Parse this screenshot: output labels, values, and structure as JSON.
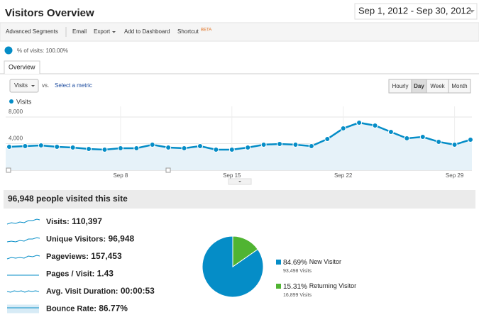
{
  "header": {
    "title": "Visitors Overview",
    "date_range": "Sep 1, 2012 - Sep 30, 2012"
  },
  "toolbar": {
    "items": [
      "Advanced Segments",
      "Email",
      "Export",
      "Add to Dashboard",
      "Shortcut"
    ],
    "badge": "BETA"
  },
  "segment": "% of visits: 100.00%",
  "tab": "Overview",
  "controls": {
    "metric": "Visits",
    "vs": "vs.",
    "select": "Select a metric",
    "granularity": [
      "Hourly",
      "Day",
      "Week",
      "Month"
    ]
  },
  "chart_data": [
    {
      "type": "line",
      "categories": [
        null,
        null,
        null,
        null,
        null,
        null,
        null,
        "Sep 8",
        null,
        null,
        null,
        null,
        null,
        null,
        "Sep 15",
        null,
        null,
        null,
        null,
        null,
        null,
        "Sep 22",
        null,
        null,
        null,
        null,
        null,
        null,
        "Sep 29",
        null
      ],
      "series": [
        {
          "name": "Visits",
          "color": "#058dc7",
          "values": [
            3520,
            3630,
            3730,
            3520,
            3410,
            3200,
            3090,
            3310,
            3310,
            3840,
            3410,
            3310,
            3630,
            3090,
            3090,
            3410,
            3840,
            3950,
            3840,
            3630,
            4690,
            6290,
            7150,
            6720,
            5760,
            4800,
            5010,
            4270,
            3840,
            4590
          ]
        }
      ],
      "ylim": [
        0,
        8000
      ],
      "yticks": [
        {
          "value": 4000,
          "label": "4,000"
        },
        {
          "value": 8000,
          "label": "8,000"
        }
      ],
      "grid": true
    },
    {
      "type": "pie",
      "categories": [
        "New Visitor",
        "Returning Visitor"
      ],
      "values": [
        84.69,
        15.31
      ],
      "value_labels": [
        "84.69%",
        "15.31%"
      ],
      "colors": [
        "#058dc7",
        "#50b432"
      ],
      "counts": [
        "93,498 Visits",
        "16,899 Visits"
      ]
    }
  ],
  "summary": {
    "headline": "96,948 people visited this site",
    "metrics": [
      {
        "label": "Visits:",
        "value": "110,397"
      },
      {
        "label": "Unique Visitors:",
        "value": "96,948"
      },
      {
        "label": "Pageviews:",
        "value": "157,453"
      },
      {
        "label": "Pages / Visit:",
        "value": "1.43"
      },
      {
        "label": "Avg. Visit Duration:",
        "value": "00:00:53"
      },
      {
        "label": "Bounce Rate:",
        "value": "86.77%"
      }
    ]
  }
}
